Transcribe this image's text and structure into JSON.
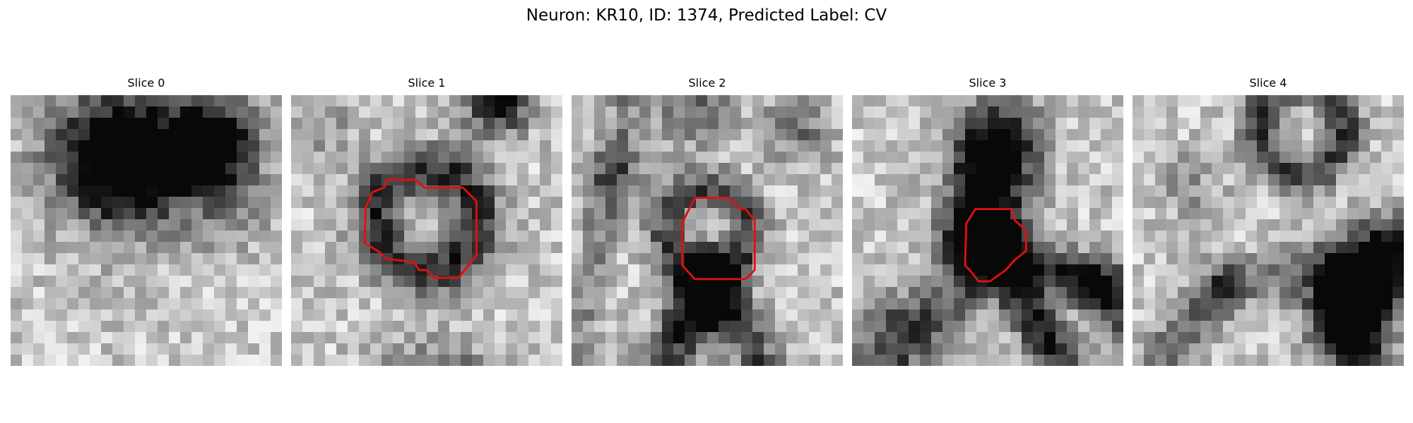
{
  "figure": {
    "title": "Neuron: KR10, ID: 1374, Predicted Label: CV",
    "contour_color": "#e01010"
  },
  "panels": [
    {
      "title": "Slice 0",
      "seed": 11,
      "blobs": [
        [
          9,
          5,
          3.8,
          0.75
        ],
        [
          18,
          4,
          2.8,
          0.85
        ],
        [
          11,
          7,
          4,
          0.5
        ],
        [
          16,
          6,
          2,
          0.4
        ],
        [
          20,
          10,
          2.5,
          0.25
        ]
      ],
      "rings": [],
      "lines": [],
      "contour": []
    },
    {
      "title": "Slice 1",
      "seed": 23,
      "blobs": [
        [
          11,
          28,
          3,
          0.6
        ],
        [
          15,
          28,
          3,
          0.7
        ],
        [
          18,
          1,
          2,
          0.55
        ],
        [
          19,
          0,
          1.5,
          0.4
        ],
        [
          3,
          3,
          2,
          0.2
        ]
      ],
      "rings": [
        [
          12,
          11,
          4.5,
          1.6,
          0.6
        ]
      ],
      "lines": [],
      "contour": [
        [
          8.5,
          7.5
        ],
        [
          11,
          7.5
        ],
        [
          11.8,
          8.2
        ],
        [
          15.2,
          8.2
        ],
        [
          16.4,
          9.4
        ],
        [
          16.4,
          14.2
        ],
        [
          14.8,
          16.2
        ],
        [
          12.7,
          16.2
        ],
        [
          12.0,
          15.5
        ],
        [
          11.3,
          15.5
        ],
        [
          10.9,
          14.8
        ],
        [
          8.4,
          14.5
        ],
        [
          7.8,
          13.9
        ],
        [
          6.5,
          13.1
        ],
        [
          6.6,
          10.0
        ],
        [
          7.2,
          8.6
        ],
        [
          8.2,
          8.2
        ]
      ]
    },
    {
      "title": "Slice 2",
      "seed": 37,
      "blobs": [
        [
          11,
          1,
          2.5,
          0.35
        ],
        [
          4,
          7,
          2.2,
          0.3
        ],
        [
          20,
          3,
          2,
          0.35
        ],
        [
          12,
          18,
          2,
          0.55
        ]
      ],
      "rings": [
        [
          12,
          12,
          3.6,
          1.3,
          0.5
        ]
      ],
      "lines": [
        [
          12,
          16,
          8,
          25,
          1.6,
          0.55
        ],
        [
          12,
          16,
          18,
          26,
          1.4,
          0.5
        ],
        [
          5,
          0,
          0,
          24,
          1.2,
          0.25
        ]
      ],
      "contour": [
        [
          10.9,
          9.1
        ],
        [
          13.9,
          9.1
        ],
        [
          14.9,
          10.1
        ],
        [
          15.4,
          10.1
        ],
        [
          16.2,
          11.1
        ],
        [
          16.2,
          15.5
        ],
        [
          15.4,
          16.3
        ],
        [
          10.9,
          16.3
        ],
        [
          9.8,
          15.1
        ],
        [
          9.8,
          11.3
        ]
      ]
    },
    {
      "title": "Slice 3",
      "seed": 53,
      "blobs": [
        [
          13,
          4,
          2.6,
          0.7
        ],
        [
          12,
          7,
          2.2,
          0.6
        ],
        [
          12,
          11,
          2.5,
          0.6
        ],
        [
          11,
          13,
          2,
          0.7
        ],
        [
          3,
          20,
          2.5,
          0.3
        ]
      ],
      "rings": [],
      "lines": [
        [
          13,
          14,
          24,
          17,
          1.5,
          0.55
        ],
        [
          13,
          14,
          19,
          25,
          1.5,
          0.65
        ],
        [
          12,
          15,
          2,
          25,
          1.8,
          0.4
        ],
        [
          21,
          17,
          24,
          20,
          1.3,
          0.45
        ]
      ],
      "contour": [
        [
          10.9,
          10.1
        ],
        [
          14.1,
          10.1
        ],
        [
          14.4,
          11.1
        ],
        [
          15.4,
          12.0
        ],
        [
          15.4,
          13.8
        ],
        [
          14.4,
          14.6
        ],
        [
          13.6,
          15.5
        ],
        [
          12.2,
          16.5
        ],
        [
          11.2,
          16.5
        ],
        [
          10.4,
          15.5
        ],
        [
          10,
          15.1
        ],
        [
          10.1,
          11.4
        ]
      ]
    },
    {
      "title": "Slice 4",
      "seed": 71,
      "blobs": [
        [
          21,
          16,
          2.5,
          0.65
        ],
        [
          19,
          18,
          3,
          0.45
        ],
        [
          5,
          8,
          2,
          0.2
        ]
      ],
      "rings": [
        [
          15,
          3,
          3.8,
          1.2,
          0.55
        ]
      ],
      "lines": [
        [
          23,
          13,
          19,
          20,
          1.8,
          0.55
        ],
        [
          19,
          20,
          21,
          26,
          1.8,
          0.5
        ],
        [
          2,
          24,
          8,
          17,
          1.5,
          0.35
        ],
        [
          8,
          17,
          17,
          15,
          1.4,
          0.3
        ]
      ],
      "contour": []
    }
  ]
}
